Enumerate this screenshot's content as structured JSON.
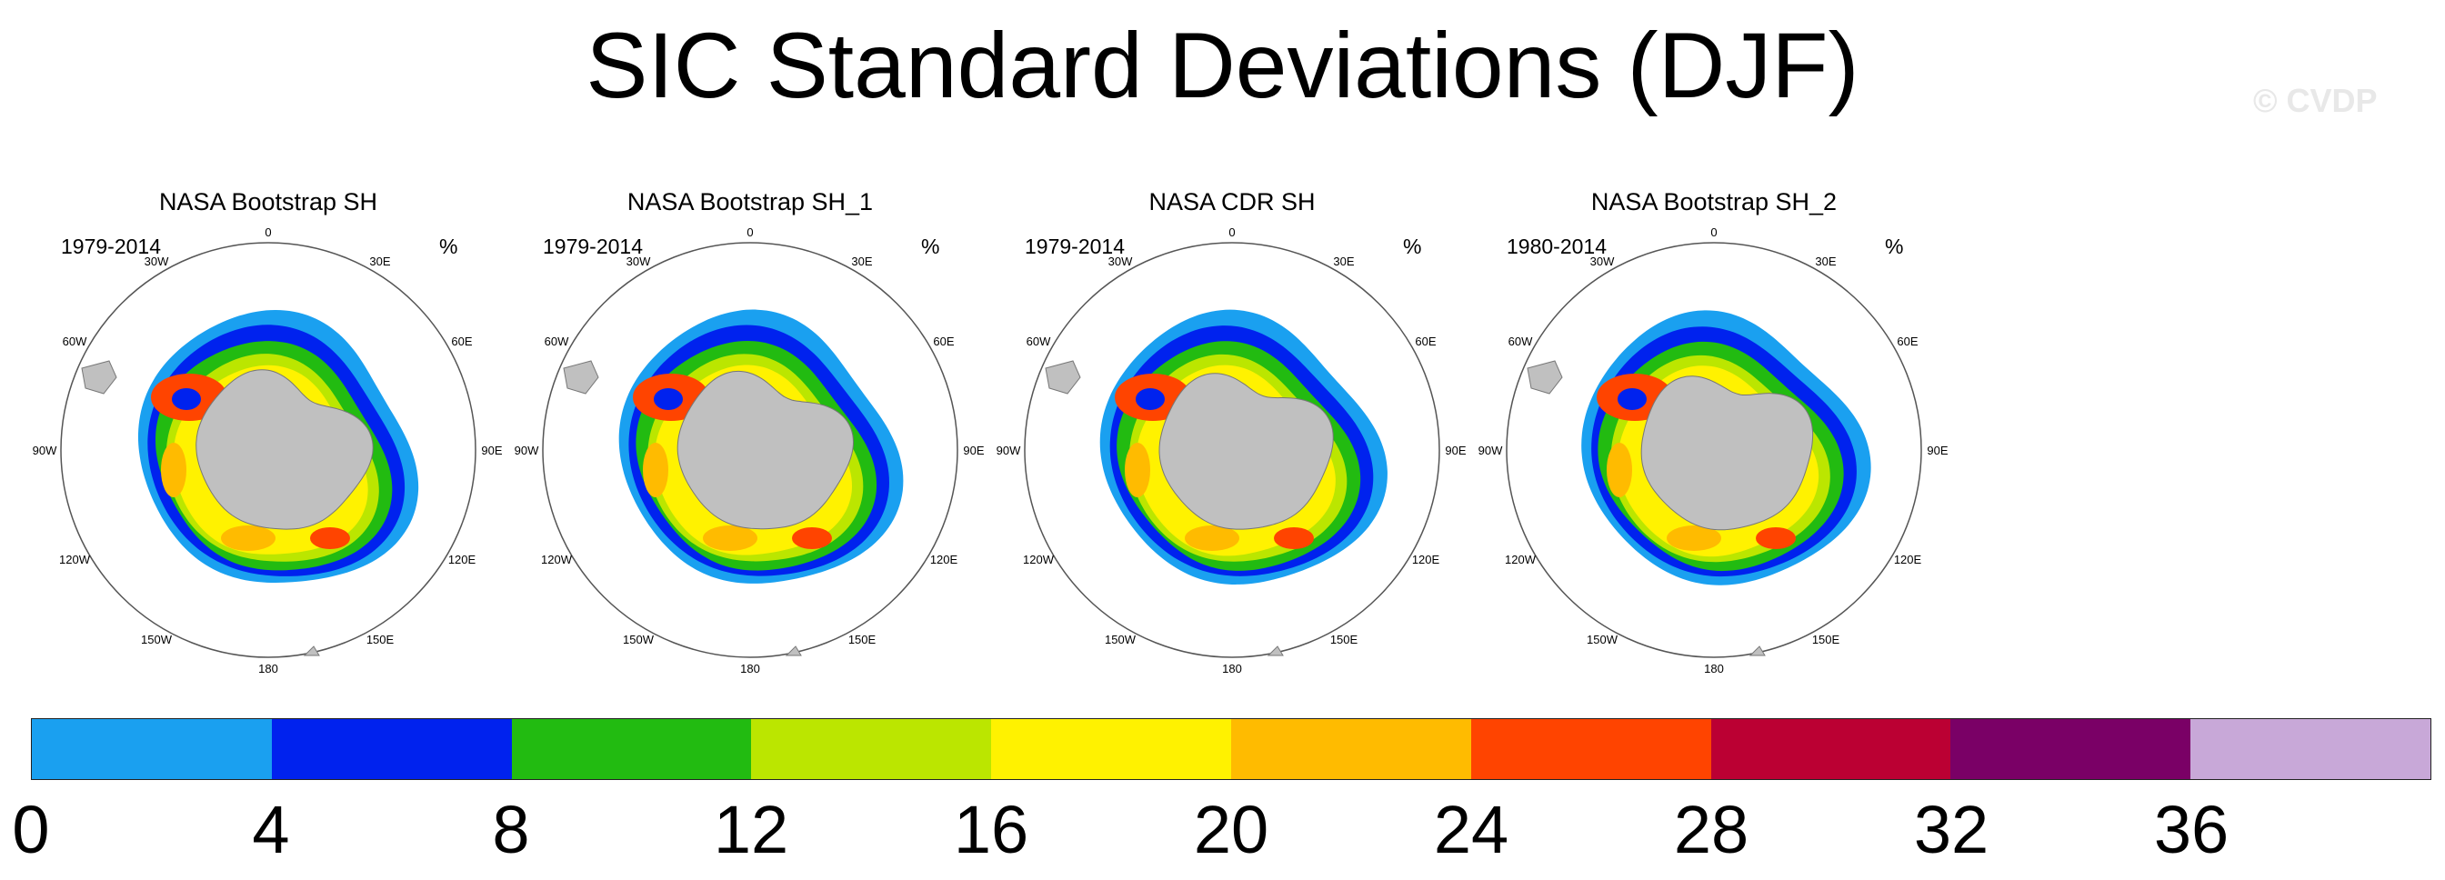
{
  "figure": {
    "title": "SIC Standard Deviations (DJF)",
    "watermark": "© CVDP"
  },
  "panels": [
    {
      "title": "NASA Bootstrap SH",
      "period": "1979-2014",
      "unit": "%"
    },
    {
      "title": "NASA Bootstrap SH_1",
      "period": "1979-2014",
      "unit": "%"
    },
    {
      "title": "NASA CDR SH",
      "period": "1979-2014",
      "unit": "%"
    },
    {
      "title": "NASA Bootstrap SH_2",
      "period": "1980-2014",
      "unit": "%"
    }
  ],
  "longitude_labels": [
    "0",
    "30E",
    "60E",
    "90E",
    "120E",
    "150E",
    "180",
    "150W",
    "120W",
    "90W",
    "60W",
    "30W"
  ],
  "colorbar": {
    "labels": [
      "0",
      "4",
      "8",
      "12",
      "16",
      "20",
      "24",
      "28",
      "32",
      "36"
    ],
    "colors": [
      "#1aa0f0",
      "#0022ee",
      "#22bb11",
      "#bbe600",
      "#fff200",
      "#ffbb00",
      "#ff4400",
      "#bb0033",
      "#7a0066",
      "#c8a8d8"
    ]
  }
}
